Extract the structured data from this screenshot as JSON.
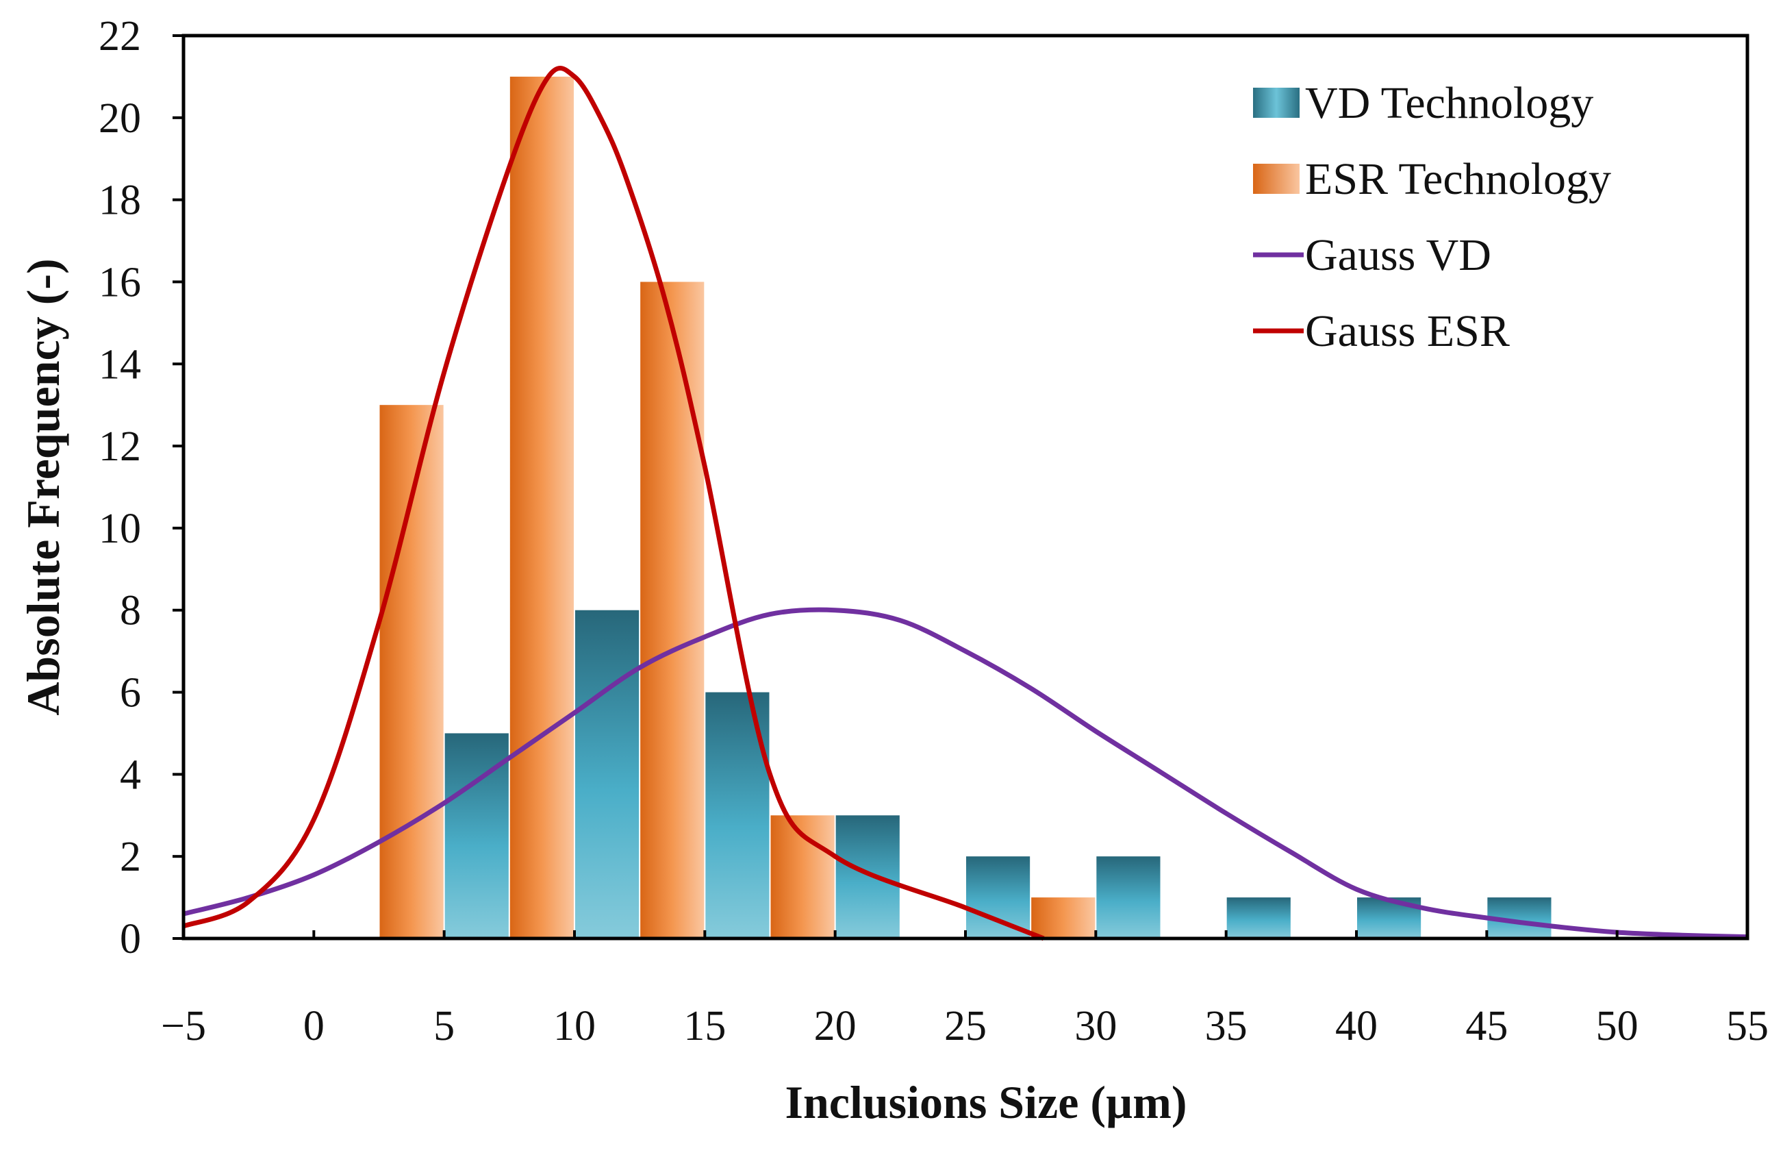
{
  "chart_data": {
    "type": "bar",
    "xlabel": "Inclusions Size (µm)",
    "ylabel": "Absolute Frequency (-)",
    "xlim": [
      -5,
      55
    ],
    "ylim": [
      0,
      22
    ],
    "x_ticks": [
      "−5",
      "0",
      "5",
      "10",
      "15",
      "20",
      "25",
      "30",
      "35",
      "40",
      "45",
      "50",
      "55"
    ],
    "y_ticks": [
      "0",
      "2",
      "4",
      "6",
      "8",
      "10",
      "12",
      "14",
      "16",
      "18",
      "20",
      "22"
    ],
    "legend_position": "top-right",
    "series": [
      {
        "name": "VD Technology",
        "kind": "bar",
        "color": "#3a93a8",
        "x_start": [
          5,
          10,
          15,
          20,
          25,
          30,
          35,
          40,
          45
        ],
        "x_end": [
          7.5,
          12.5,
          17.5,
          22.5,
          27.5,
          32.5,
          37.5,
          42.5,
          47.5
        ],
        "values": [
          5,
          8,
          6,
          3,
          2,
          2,
          1,
          1,
          1
        ]
      },
      {
        "name": "ESR Technology",
        "kind": "bar",
        "color": "#f08a3e",
        "x_start": [
          2.5,
          7.5,
          12.5,
          17.5,
          27.5
        ],
        "x_end": [
          5,
          10,
          15,
          20,
          30
        ],
        "values": [
          13,
          21,
          16,
          3,
          1
        ]
      },
      {
        "name": "Gauss VD",
        "kind": "line",
        "color": "#7030a0",
        "x": [
          -5,
          -2.5,
          0,
          2.5,
          5,
          7.5,
          10,
          12.5,
          15,
          17.5,
          20,
          22.5,
          25,
          27.5,
          30,
          32.5,
          35,
          37.5,
          40,
          42.5,
          45,
          47.5,
          50,
          52.5,
          55
        ],
        "y": [
          0.6,
          1.0,
          1.55,
          2.35,
          3.3,
          4.4,
          5.5,
          6.6,
          7.35,
          7.9,
          8.0,
          7.75,
          7.0,
          6.1,
          5.05,
          4.05,
          3.05,
          2.1,
          1.2,
          0.75,
          0.5,
          0.3,
          0.15,
          0.08,
          0.04
        ]
      },
      {
        "name": "Gauss ESR",
        "kind": "line",
        "color": "#c00000",
        "x": [
          -5,
          -2.5,
          0,
          2.5,
          5,
          7.5,
          9,
          10,
          11,
          12,
          13.5,
          15,
          17.5,
          20,
          25,
          28
        ],
        "y": [
          0.3,
          0.9,
          2.9,
          7.7,
          13.8,
          18.8,
          21.0,
          21.0,
          20.0,
          18.5,
          15.5,
          11.5,
          4.0,
          2.0,
          0.75,
          0.0
        ]
      }
    ]
  }
}
